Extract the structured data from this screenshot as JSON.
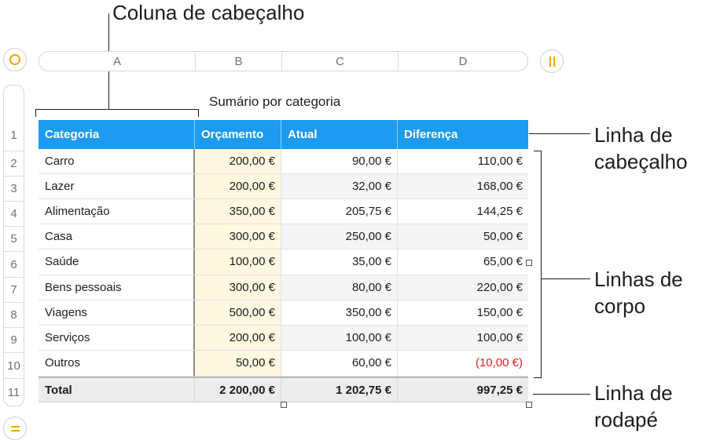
{
  "annotations": {
    "header_column": "Coluna de cabeçalho",
    "header_row": [
      "Linha de",
      "cabeçalho"
    ],
    "body_rows": [
      "Linhas de",
      "corpo"
    ],
    "footer_row": [
      "Linha de",
      "rodapé"
    ]
  },
  "columns": [
    "A",
    "B",
    "C",
    "D"
  ],
  "row_numbers": [
    "1",
    "2",
    "3",
    "4",
    "5",
    "6",
    "7",
    "8",
    "9",
    "10",
    "11"
  ],
  "table": {
    "title": "Sumário por categoria",
    "headers": [
      "Categoria",
      "Orçamento",
      "Atual",
      "Diferença"
    ],
    "rows": [
      [
        "Carro",
        "200,00 €",
        "90,00 €",
        "110,00 €"
      ],
      [
        "Lazer",
        "200,00 €",
        "32,00 €",
        "168,00 €"
      ],
      [
        "Alimentação",
        "350,00 €",
        "205,75 €",
        "144,25 €"
      ],
      [
        "Casa",
        "300,00 €",
        "250,00 €",
        "50,00 €"
      ],
      [
        "Saúde",
        "100,00 €",
        "35,00 €",
        "65,00 €"
      ],
      [
        "Bens pessoais",
        "300,00 €",
        "80,00 €",
        "220,00 €"
      ],
      [
        "Viagens",
        "500,00 €",
        "350,00 €",
        "150,00 €"
      ],
      [
        "Serviços",
        "200,00 €",
        "100,00 €",
        "100,00 €"
      ],
      [
        "Outros",
        "50,00 €",
        "60,00 €",
        "(10,00 €)"
      ]
    ],
    "footer": [
      "Total",
      "2 200,00 €",
      "1 202,75 €",
      "997,25 €"
    ]
  },
  "colors": {
    "header_bg": "#1c9bf1",
    "accent": "#f0a500",
    "negative": "#e02020",
    "budget_bg": "#fdf8e0"
  },
  "icons": {
    "top_left": "circle-icon",
    "top_right": "pause-icon",
    "bottom_left": "equals-icon"
  }
}
